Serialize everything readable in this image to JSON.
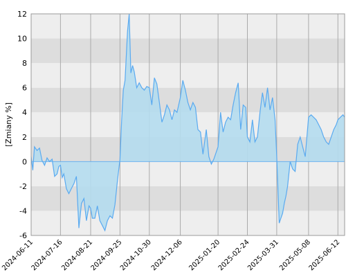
{
  "chart_data": {
    "type": "area",
    "title": "",
    "xlabel": "",
    "ylabel": "[Zmiany %]",
    "ylim": [
      -6,
      12
    ],
    "yticks": [
      -6,
      -4,
      -2,
      0,
      2,
      4,
      6,
      8,
      10,
      12
    ],
    "xlim": [
      "2024-06-11",
      "2025-06-20"
    ],
    "xticks": [
      "2024-06-11",
      "2024-07-16",
      "2024-08-21",
      "2024-09-25",
      "2024-10-30",
      "2024-12-06",
      "2025-01-20",
      "2025-02-24",
      "2025-03-31",
      "2025-05-08",
      "2025-06-12"
    ],
    "grid": true,
    "legend": "none",
    "colors": {
      "line": "#5aaaf0",
      "fill": "#b4dcee",
      "band_dark": "#dddddd",
      "band_light": "#eeeeee",
      "vgrid": "#aaaaaa"
    },
    "series": [
      {
        "x": [
          "2024-06-11",
          "2024-06-13",
          "2024-06-15",
          "2024-06-18",
          "2024-06-21",
          "2024-06-24",
          "2024-06-27",
          "2024-06-30",
          "2024-07-03",
          "2024-07-06",
          "2024-07-09",
          "2024-07-12",
          "2024-07-14",
          "2024-07-16",
          "2024-07-18",
          "2024-07-20",
          "2024-07-23",
          "2024-07-26",
          "2024-07-29",
          "2024-08-01",
          "2024-08-04",
          "2024-08-07",
          "2024-08-10",
          "2024-08-13",
          "2024-08-16",
          "2024-08-19",
          "2024-08-21",
          "2024-08-23",
          "2024-08-26",
          "2024-08-29",
          "2024-09-01",
          "2024-09-04",
          "2024-09-07",
          "2024-09-10",
          "2024-09-13",
          "2024-09-16",
          "2024-09-19",
          "2024-09-22",
          "2024-09-25",
          "2024-09-27",
          "2024-09-29",
          "2024-10-01",
          "2024-10-04",
          "2024-10-06",
          "2024-10-08",
          "2024-10-10",
          "2024-10-12",
          "2024-10-15",
          "2024-10-18",
          "2024-10-21",
          "2024-10-24",
          "2024-10-27",
          "2024-10-30",
          "2024-11-02",
          "2024-11-05",
          "2024-11-08",
          "2024-11-11",
          "2024-11-14",
          "2024-11-17",
          "2024-11-20",
          "2024-11-23",
          "2024-11-26",
          "2024-11-29",
          "2024-12-02",
          "2024-12-06",
          "2024-12-09",
          "2024-12-12",
          "2024-12-15",
          "2024-12-18",
          "2024-12-21",
          "2024-12-24",
          "2024-12-27",
          "2024-12-30",
          "2025-01-02",
          "2025-01-06",
          "2025-01-09",
          "2025-01-12",
          "2025-01-15",
          "2025-01-20",
          "2025-01-23",
          "2025-01-26",
          "2025-01-29",
          "2025-02-01",
          "2025-02-04",
          "2025-02-07",
          "2025-02-10",
          "2025-02-13",
          "2025-02-16",
          "2025-02-19",
          "2025-02-22",
          "2025-02-24",
          "2025-02-27",
          "2025-03-02",
          "2025-03-05",
          "2025-03-08",
          "2025-03-11",
          "2025-03-14",
          "2025-03-17",
          "2025-03-20",
          "2025-03-23",
          "2025-03-26",
          "2025-03-29",
          "2025-03-31",
          "2025-04-03",
          "2025-04-05",
          "2025-04-07",
          "2025-04-09",
          "2025-04-11",
          "2025-04-13",
          "2025-04-16",
          "2025-04-19",
          "2025-04-22",
          "2025-04-25",
          "2025-04-28",
          "2025-05-01",
          "2025-05-04",
          "2025-05-08",
          "2025-05-11",
          "2025-05-14",
          "2025-05-17",
          "2025-05-20",
          "2025-05-23",
          "2025-05-26",
          "2025-05-29",
          "2025-06-01",
          "2025-06-04",
          "2025-06-07",
          "2025-06-10",
          "2025-06-12",
          "2025-06-15",
          "2025-06-18",
          "2025-06-20"
        ],
        "values": [
          0.4,
          -0.7,
          1.2,
          0.9,
          1.1,
          0.1,
          -0.3,
          0.3,
          0.0,
          0.2,
          -1.2,
          -1.0,
          -0.4,
          -0.3,
          -1.3,
          -1.0,
          -2.2,
          -2.6,
          -2.2,
          -1.8,
          -1.2,
          -5.4,
          -3.4,
          -3.0,
          -4.8,
          -3.6,
          -3.8,
          -4.6,
          -4.6,
          -3.6,
          -4.8,
          -5.2,
          -5.6,
          -4.8,
          -4.4,
          -4.6,
          -3.5,
          -1.5,
          0.2,
          3.4,
          5.8,
          6.6,
          10.6,
          12.0,
          7.2,
          7.8,
          7.3,
          6.0,
          6.4,
          6.0,
          5.8,
          6.1,
          6.0,
          4.6,
          6.8,
          6.3,
          4.8,
          3.2,
          3.8,
          4.6,
          4.2,
          3.4,
          4.2,
          4.0,
          5.2,
          6.6,
          5.8,
          4.8,
          4.2,
          4.8,
          4.4,
          2.6,
          2.4,
          0.6,
          2.6,
          0.4,
          -0.2,
          0.2,
          1.2,
          4.0,
          2.4,
          3.2,
          3.6,
          3.4,
          4.6,
          5.6,
          6.4,
          2.6,
          4.6,
          4.4,
          2.0,
          1.6,
          3.4,
          1.6,
          2.0,
          4.0,
          5.6,
          4.4,
          6.0,
          4.2,
          5.2,
          3.4,
          0.4,
          -5.0,
          -4.6,
          -4.2,
          -3.4,
          -2.8,
          -2.0,
          0.0,
          -0.6,
          -0.8,
          1.4,
          2.0,
          1.2,
          0.4,
          3.6,
          3.8,
          3.6,
          3.4,
          3.0,
          2.6,
          2.0,
          1.6,
          1.4,
          2.0,
          2.6,
          3.0,
          3.4,
          3.6,
          3.8,
          3.6
        ]
      }
    ]
  }
}
